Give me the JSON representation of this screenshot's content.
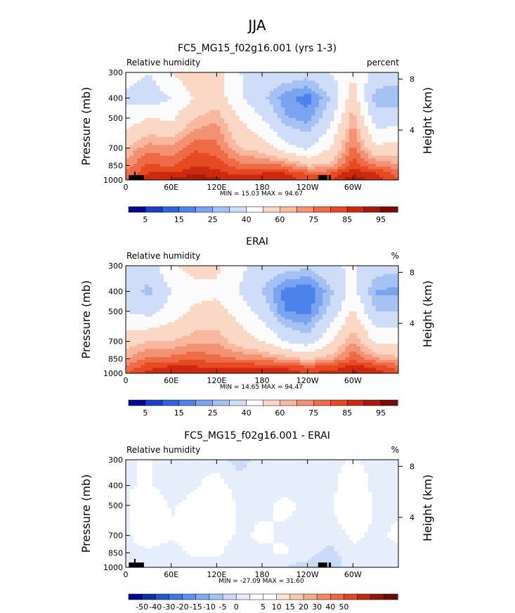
{
  "figure": {
    "suptitle": "JJA"
  },
  "colors": {
    "rh_scale": [
      "#08088f",
      "#1a3fc8",
      "#2f63dd",
      "#4d82ea",
      "#7aa3f0",
      "#a6c1f4",
      "#d0ddf8",
      "#fbfbfb",
      "#fbd8c6",
      "#f8b79e",
      "#f39273",
      "#ee6b48",
      "#e64a22",
      "#cc2a0e",
      "#a51a0a",
      "#7a0c05"
    ],
    "diff_scale": [
      "#08088f",
      "#14309f",
      "#2456c8",
      "#3d78e0",
      "#5c92ea",
      "#7fabf0",
      "#a4c3f5",
      "#c9dbf8",
      "#e6eefb",
      "#ffffff",
      "#ffffff",
      "#fbe4d6",
      "#f8c9ae",
      "#f4ab88",
      "#ef8a63",
      "#e86841",
      "#d94a24",
      "#b82c12",
      "#8e1608",
      "#6a0a03"
    ],
    "land": "#000000"
  },
  "panels": [
    {
      "title": "FC5_MG15_f02g16.001 (yrs 1-3)",
      "left_label": "Relative humidity",
      "right_label": "percent",
      "stats": "MIN =   15.03   MAX =   94.67",
      "colorbar_labels": [
        "5",
        "15",
        "25",
        "40",
        "60",
        "75",
        "85",
        "95"
      ],
      "colorbar_label_bins": [
        1,
        3,
        5,
        7,
        9,
        11,
        13,
        15
      ],
      "colorbar_bins": 16
    },
    {
      "title": "ERAI",
      "left_label": "Relative humidity",
      "right_label": "%",
      "stats": "MIN =   14.65   MAX =   94.47",
      "colorbar_labels": [
        "5",
        "15",
        "25",
        "40",
        "60",
        "75",
        "85",
        "95"
      ],
      "colorbar_label_bins": [
        1,
        3,
        5,
        7,
        9,
        11,
        13,
        15
      ],
      "colorbar_bins": 16
    },
    {
      "title": "FC5_MG15_f02g16.001 - ERAI",
      "left_label": "Relative humidity",
      "right_label": "%",
      "stats": "MIN = -27.09   MAX =   31.60",
      "colorbar_labels": [
        "-50",
        "-40",
        "-30",
        "-20",
        "-15",
        "-10",
        "-5",
        "0",
        "5",
        "10",
        "15",
        "20",
        "30",
        "40",
        "50"
      ],
      "colorbar_label_bins": [
        1,
        2,
        3,
        4,
        5,
        6,
        7,
        8,
        10,
        11,
        12,
        13,
        14,
        15,
        16
      ],
      "colorbar_bins": 20
    }
  ],
  "chart_data": [
    {
      "type": "heatmap",
      "title": "FC5_MG15_f02g16.001 (yrs 1-3)",
      "xlabel": "",
      "ylabel": "Pressure (mb)",
      "y2label": "Height (km)",
      "xticks": [
        "0",
        "60E",
        "120E",
        "180",
        "120W",
        "60W"
      ],
      "xtick_lon": [
        0,
        60,
        120,
        180,
        240,
        300
      ],
      "xlim": [
        0,
        360
      ],
      "yticks": [
        "300",
        "400",
        "500",
        "700",
        "850",
        "1000"
      ],
      "ytick_p": [
        300,
        400,
        500,
        700,
        850,
        1000
      ],
      "ylim": [
        300,
        1000
      ],
      "y2ticks": [
        "8",
        "4"
      ],
      "y2tick_km": [
        8,
        4
      ],
      "yscale": "log",
      "units": "percent",
      "min": 15.03,
      "max": 94.67,
      "levels": [
        5,
        10,
        15,
        20,
        25,
        30,
        40,
        50,
        60,
        65,
        70,
        75,
        80,
        85,
        90,
        95
      ],
      "pressure_levels": [
        1000,
        925,
        850,
        700,
        500,
        400,
        300
      ],
      "longitudes": [
        0,
        30,
        60,
        90,
        120,
        150,
        180,
        210,
        240,
        270,
        300,
        330,
        360
      ],
      "values": [
        [
          74,
          84,
          86,
          90,
          86,
          84,
          84,
          84,
          78,
          80,
          88,
          84,
          76
        ],
        [
          70,
          80,
          80,
          84,
          82,
          78,
          80,
          80,
          74,
          74,
          84,
          80,
          72
        ],
        [
          68,
          76,
          74,
          80,
          78,
          72,
          72,
          70,
          60,
          62,
          78,
          70,
          66
        ],
        [
          60,
          68,
          66,
          74,
          72,
          60,
          56,
          44,
          38,
          50,
          72,
          52,
          54
        ],
        [
          44,
          50,
          48,
          60,
          64,
          50,
          40,
          26,
          22,
          36,
          64,
          34,
          34
        ],
        [
          38,
          34,
          40,
          50,
          56,
          42,
          32,
          22,
          17,
          30,
          56,
          26,
          26
        ],
        [
          44,
          40,
          50,
          58,
          54,
          40,
          38,
          36,
          34,
          40,
          48,
          36,
          34
        ]
      ]
    },
    {
      "type": "heatmap",
      "title": "ERAI",
      "xlabel": "",
      "ylabel": "Pressure (mb)",
      "y2label": "Height (km)",
      "xticks": [
        "0",
        "60E",
        "120E",
        "180",
        "120W",
        "60W"
      ],
      "xtick_lon": [
        0,
        60,
        120,
        180,
        240,
        300
      ],
      "xlim": [
        0,
        360
      ],
      "yticks": [
        "300",
        "400",
        "500",
        "700",
        "850",
        "1000"
      ],
      "ytick_p": [
        300,
        400,
        500,
        700,
        850,
        1000
      ],
      "ylim": [
        300,
        1000
      ],
      "y2ticks": [
        "8",
        "4"
      ],
      "y2tick_km": [
        8,
        4
      ],
      "yscale": "log",
      "units": "%",
      "min": 14.65,
      "max": 94.47,
      "levels": [
        5,
        10,
        15,
        20,
        25,
        30,
        40,
        50,
        60,
        65,
        70,
        75,
        80,
        85,
        90,
        95
      ],
      "pressure_levels": [
        1000,
        925,
        850,
        700,
        500,
        400,
        300
      ],
      "longitudes": [
        0,
        30,
        60,
        90,
        120,
        150,
        180,
        210,
        240,
        270,
        300,
        330,
        360
      ],
      "values": [
        [
          74,
          82,
          86,
          86,
          84,
          84,
          84,
          84,
          80,
          82,
          86,
          84,
          76
        ],
        [
          70,
          78,
          80,
          80,
          78,
          78,
          78,
          78,
          74,
          76,
          82,
          78,
          72
        ],
        [
          64,
          72,
          72,
          74,
          72,
          70,
          68,
          64,
          58,
          64,
          74,
          66,
          62
        ],
        [
          56,
          60,
          60,
          64,
          64,
          56,
          50,
          40,
          34,
          48,
          66,
          48,
          48
        ],
        [
          40,
          36,
          44,
          52,
          54,
          46,
          36,
          20,
          18,
          32,
          52,
          30,
          30
        ],
        [
          34,
          28,
          40,
          46,
          48,
          40,
          30,
          18,
          15,
          28,
          44,
          24,
          24
        ],
        [
          40,
          34,
          48,
          54,
          52,
          42,
          36,
          34,
          32,
          38,
          42,
          34,
          32
        ]
      ]
    },
    {
      "type": "heatmap",
      "title": "FC5_MG15_f02g16.001 - ERAI",
      "xlabel": "",
      "ylabel": "Pressure (mb)",
      "y2label": "Height (km)",
      "xticks": [
        "0",
        "60E",
        "120E",
        "180",
        "120W",
        "60W"
      ],
      "xtick_lon": [
        0,
        60,
        120,
        180,
        240,
        300
      ],
      "xlim": [
        0,
        360
      ],
      "yticks": [
        "300",
        "400",
        "500",
        "700",
        "850",
        "1000"
      ],
      "ytick_p": [
        300,
        400,
        500,
        700,
        850,
        1000
      ],
      "ylim": [
        300,
        1000
      ],
      "y2ticks": [
        "8",
        "4"
      ],
      "y2tick_km": [
        8,
        4
      ],
      "yscale": "log",
      "units": "%",
      "min": -27.09,
      "max": 31.6,
      "levels": [
        -50,
        -40,
        -30,
        -20,
        -15,
        -10,
        -5,
        0,
        5,
        10,
        15,
        20,
        30,
        40,
        50
      ],
      "pressure_levels": [
        1000,
        925,
        850,
        700,
        500,
        400,
        300
      ],
      "longitudes": [
        0,
        30,
        60,
        90,
        120,
        150,
        180,
        210,
        240,
        270,
        300,
        330,
        360
      ],
      "values": [
        [
          0,
          2,
          0,
          4,
          2,
          0,
          0,
          0,
          -2,
          -2,
          2,
          0,
          0
        ],
        [
          0,
          2,
          0,
          4,
          4,
          0,
          2,
          2,
          0,
          -2,
          2,
          2,
          0
        ],
        [
          4,
          4,
          2,
          6,
          6,
          2,
          4,
          6,
          2,
          -2,
          4,
          4,
          4
        ],
        [
          4,
          8,
          6,
          10,
          8,
          4,
          6,
          4,
          4,
          2,
          6,
          4,
          6
        ],
        [
          4,
          14,
          4,
          8,
          10,
          4,
          4,
          6,
          4,
          4,
          12,
          4,
          4
        ],
        [
          4,
          6,
          0,
          4,
          8,
          2,
          2,
          4,
          2,
          2,
          12,
          2,
          2
        ],
        [
          4,
          6,
          2,
          4,
          2,
          -2,
          2,
          2,
          2,
          2,
          6,
          2,
          2
        ]
      ]
    }
  ]
}
